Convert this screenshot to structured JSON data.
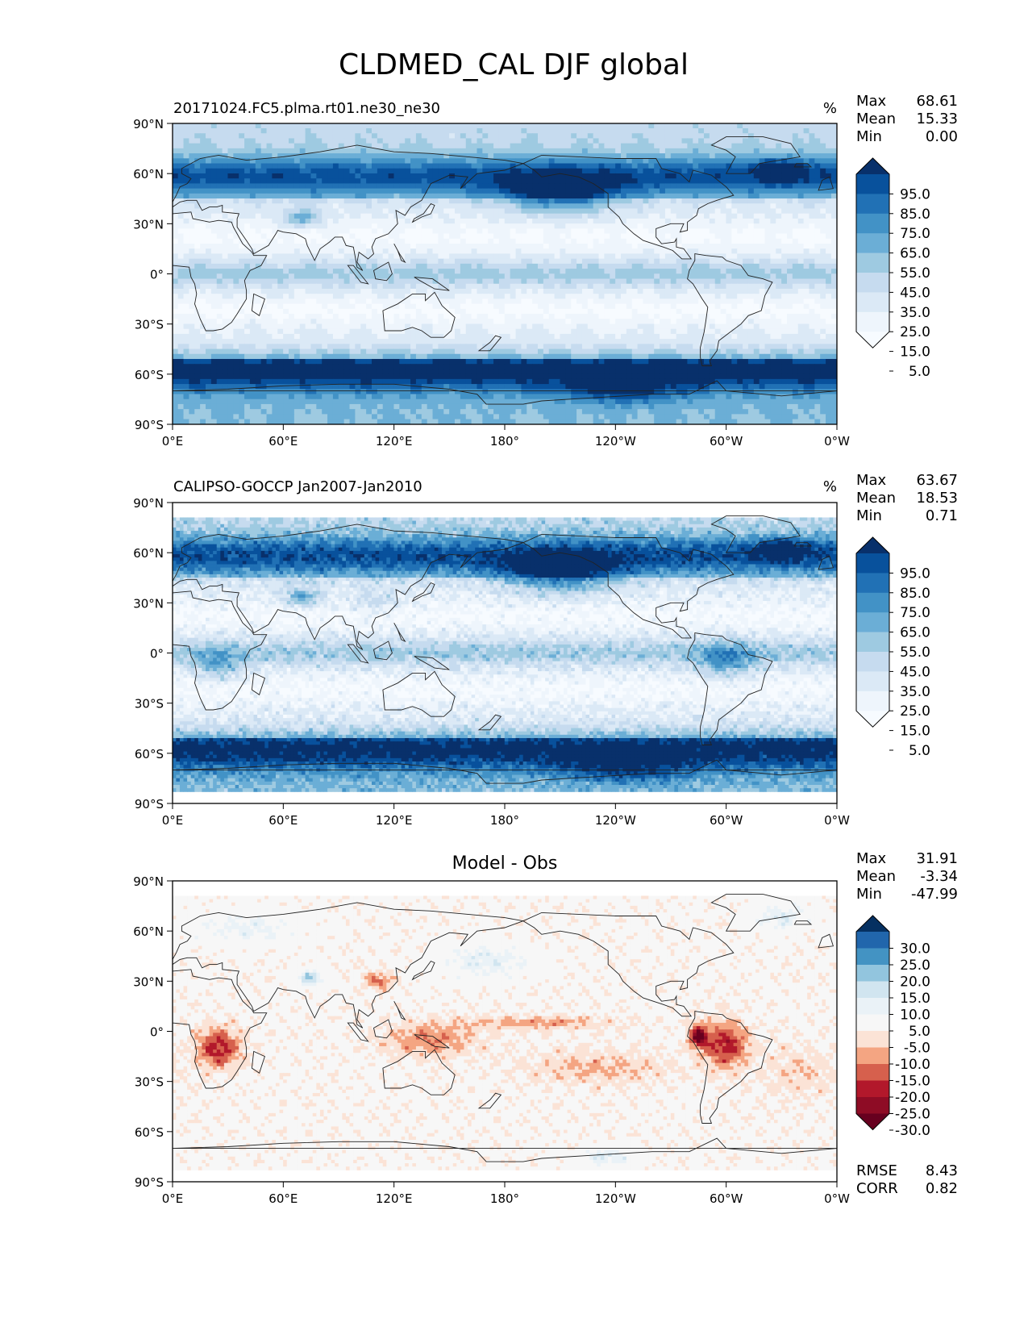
{
  "title": "CLDMED_CAL DJF global",
  "lat_ticks": [
    "90°N",
    "60°N",
    "30°N",
    "0°",
    "30°S",
    "60°S",
    "90°S"
  ],
  "lon_ticks": [
    "0°E",
    "60°E",
    "120°E",
    "180°",
    "120°W",
    "60°W",
    "0°W"
  ],
  "panels": [
    {
      "left_title": "20171024.FC5.plma.rt01.ne30_ne30",
      "center_title": "",
      "units": "%",
      "stats": [
        [
          "Max",
          "68.61"
        ],
        [
          "Mean",
          "15.33"
        ],
        [
          "Min",
          "0.00"
        ]
      ],
      "colorbar_labels": [
        "95.0",
        "85.0",
        "75.0",
        "65.0",
        "55.0",
        "45.0",
        "35.0",
        "25.0",
        "15.0",
        "5.0"
      ],
      "colorbar_colors": [
        "#08306b",
        "#08519c",
        "#2171b5",
        "#4292c6",
        "#6baed6",
        "#9ecae1",
        "#c6dbef",
        "#dbe9f6",
        "#eef5fc",
        "#f7fbff"
      ],
      "footer_stats": []
    },
    {
      "left_title": "CALIPSO-GOCCP Jan2007-Jan2010",
      "center_title": "",
      "units": "%",
      "stats": [
        [
          "Max",
          "63.67"
        ],
        [
          "Mean",
          "18.53"
        ],
        [
          "Min",
          "0.71"
        ]
      ],
      "colorbar_labels": [
        "95.0",
        "85.0",
        "75.0",
        "65.0",
        "55.0",
        "45.0",
        "35.0",
        "25.0",
        "15.0",
        "5.0"
      ],
      "colorbar_colors": [
        "#08306b",
        "#08519c",
        "#2171b5",
        "#4292c6",
        "#6baed6",
        "#9ecae1",
        "#c6dbef",
        "#dbe9f6",
        "#eef5fc",
        "#f7fbff"
      ],
      "footer_stats": []
    },
    {
      "left_title": "",
      "center_title": "Model - Obs",
      "units": "",
      "stats": [
        [
          "Max",
          "31.91"
        ],
        [
          "Mean",
          "-3.34"
        ],
        [
          "Min",
          "-47.99"
        ]
      ],
      "colorbar_labels": [
        "30.0",
        "25.0",
        "20.0",
        "15.0",
        "10.0",
        "5.0",
        "-5.0",
        "-10.0",
        "-15.0",
        "-20.0",
        "-25.0",
        "-30.0"
      ],
      "colorbar_colors": [
        "#053061",
        "#2166ac",
        "#4393c3",
        "#92c5de",
        "#d1e5f0",
        "#eaf2f7",
        "#f7f7f7",
        "#fbe3d6",
        "#f4a582",
        "#d6604d",
        "#b2182b",
        "#8e0c25",
        "#67001f"
      ],
      "footer_stats": [
        [
          "RMSE",
          "8.43"
        ],
        [
          "CORR",
          "0.82"
        ]
      ]
    }
  ]
}
